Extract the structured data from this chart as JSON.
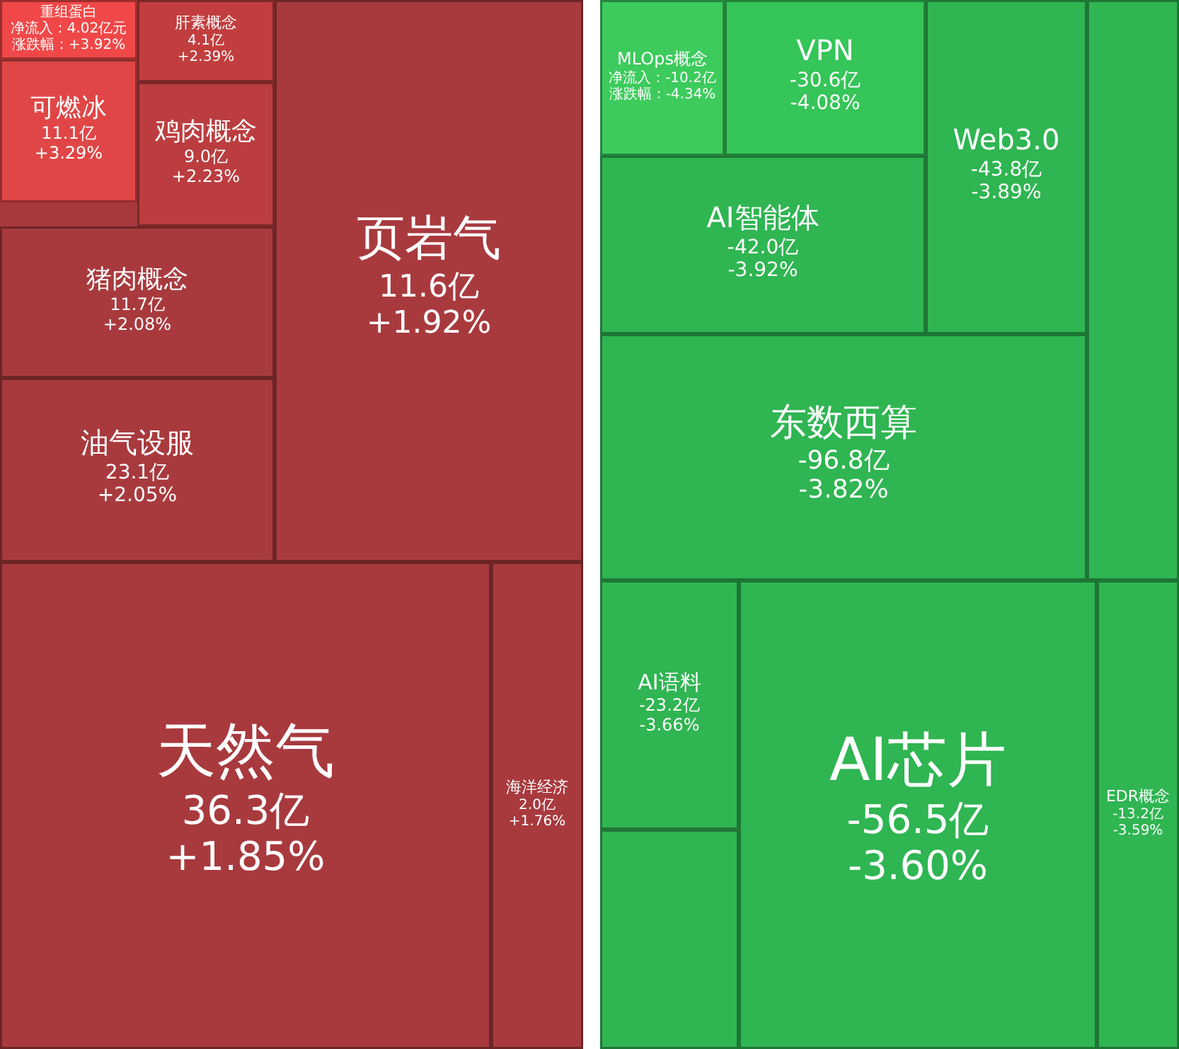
{
  "chart_data": [
    {
      "type": "other",
      "categories": [
        "重组蛋白",
        "肝素概念",
        "可燃冰",
        "鸡肉概念",
        "页岩气",
        "猪肉概念",
        "油气设服",
        "天然气",
        "海洋经济"
      ],
      "series": [
        {
          "colors": [
            "#f04848",
            "#c23e3e",
            "#e04646",
            "#bb3d3f",
            "#a83a3e",
            "#a83a3e",
            "#a83a3e",
            "#a83a3e",
            "#a83a3e"
          ],
          "values": [
            4.02,
            4.1,
            11.1,
            9.0,
            11.6,
            11.7,
            23.1,
            36.3,
            2.0
          ],
          "value_labels": [
            "净流入：4.02亿元",
            "4.1亿",
            "11.1亿",
            "9.0亿",
            "11.6亿",
            "11.7亿",
            "23.1亿",
            "36.3亿",
            "2.0亿"
          ]
        },
        {
          "values": [
            3.92,
            2.39,
            3.29,
            2.23,
            1.92,
            2.08,
            2.05,
            1.85,
            1.76
          ],
          "value_labels": [
            "涨跌幅：+3.92%",
            "+2.39%",
            "+3.29%",
            "+2.23%",
            "+1.92%",
            "+2.08%",
            "+2.05%",
            "+1.85%",
            "+1.76%"
          ]
        }
      ]
    },
    {
      "type": "other",
      "categories": [
        "MLOps概念",
        "VPN",
        "Web3.0",
        null,
        "AI智能体",
        "东数西算",
        "AI语料",
        null,
        "AI芯片",
        "EDR概念"
      ],
      "series": [
        {
          "colors": [
            "#3ccb5c",
            "#35c558",
            "#2fb552",
            "#2fb552",
            "#2fb552",
            "#2fb552",
            "#2fb552",
            "#2fb552",
            "#2fb552",
            "#2fb552"
          ],
          "values": [
            -10.2,
            -30.6,
            -43.8,
            null,
            -42.0,
            -96.8,
            -23.2,
            null,
            -56.5,
            -13.2
          ],
          "value_labels": [
            "净流入：-10.2亿",
            "-30.6亿",
            "-43.8亿",
            null,
            "-42.0亿",
            "-96.8亿",
            "-23.2亿",
            null,
            "-56.5亿",
            "-13.2亿"
          ]
        },
        {
          "values": [
            -4.34,
            -4.08,
            -3.89,
            null,
            -3.92,
            -3.82,
            -3.66,
            null,
            -3.6,
            -3.59
          ],
          "value_labels": [
            "涨跌幅：-4.34%",
            "-4.08%",
            "-3.89%",
            null,
            "-3.92%",
            "-3.82%",
            "-3.66%",
            null,
            "-3.60%",
            "-3.59%"
          ]
        }
      ]
    }
  ]
}
